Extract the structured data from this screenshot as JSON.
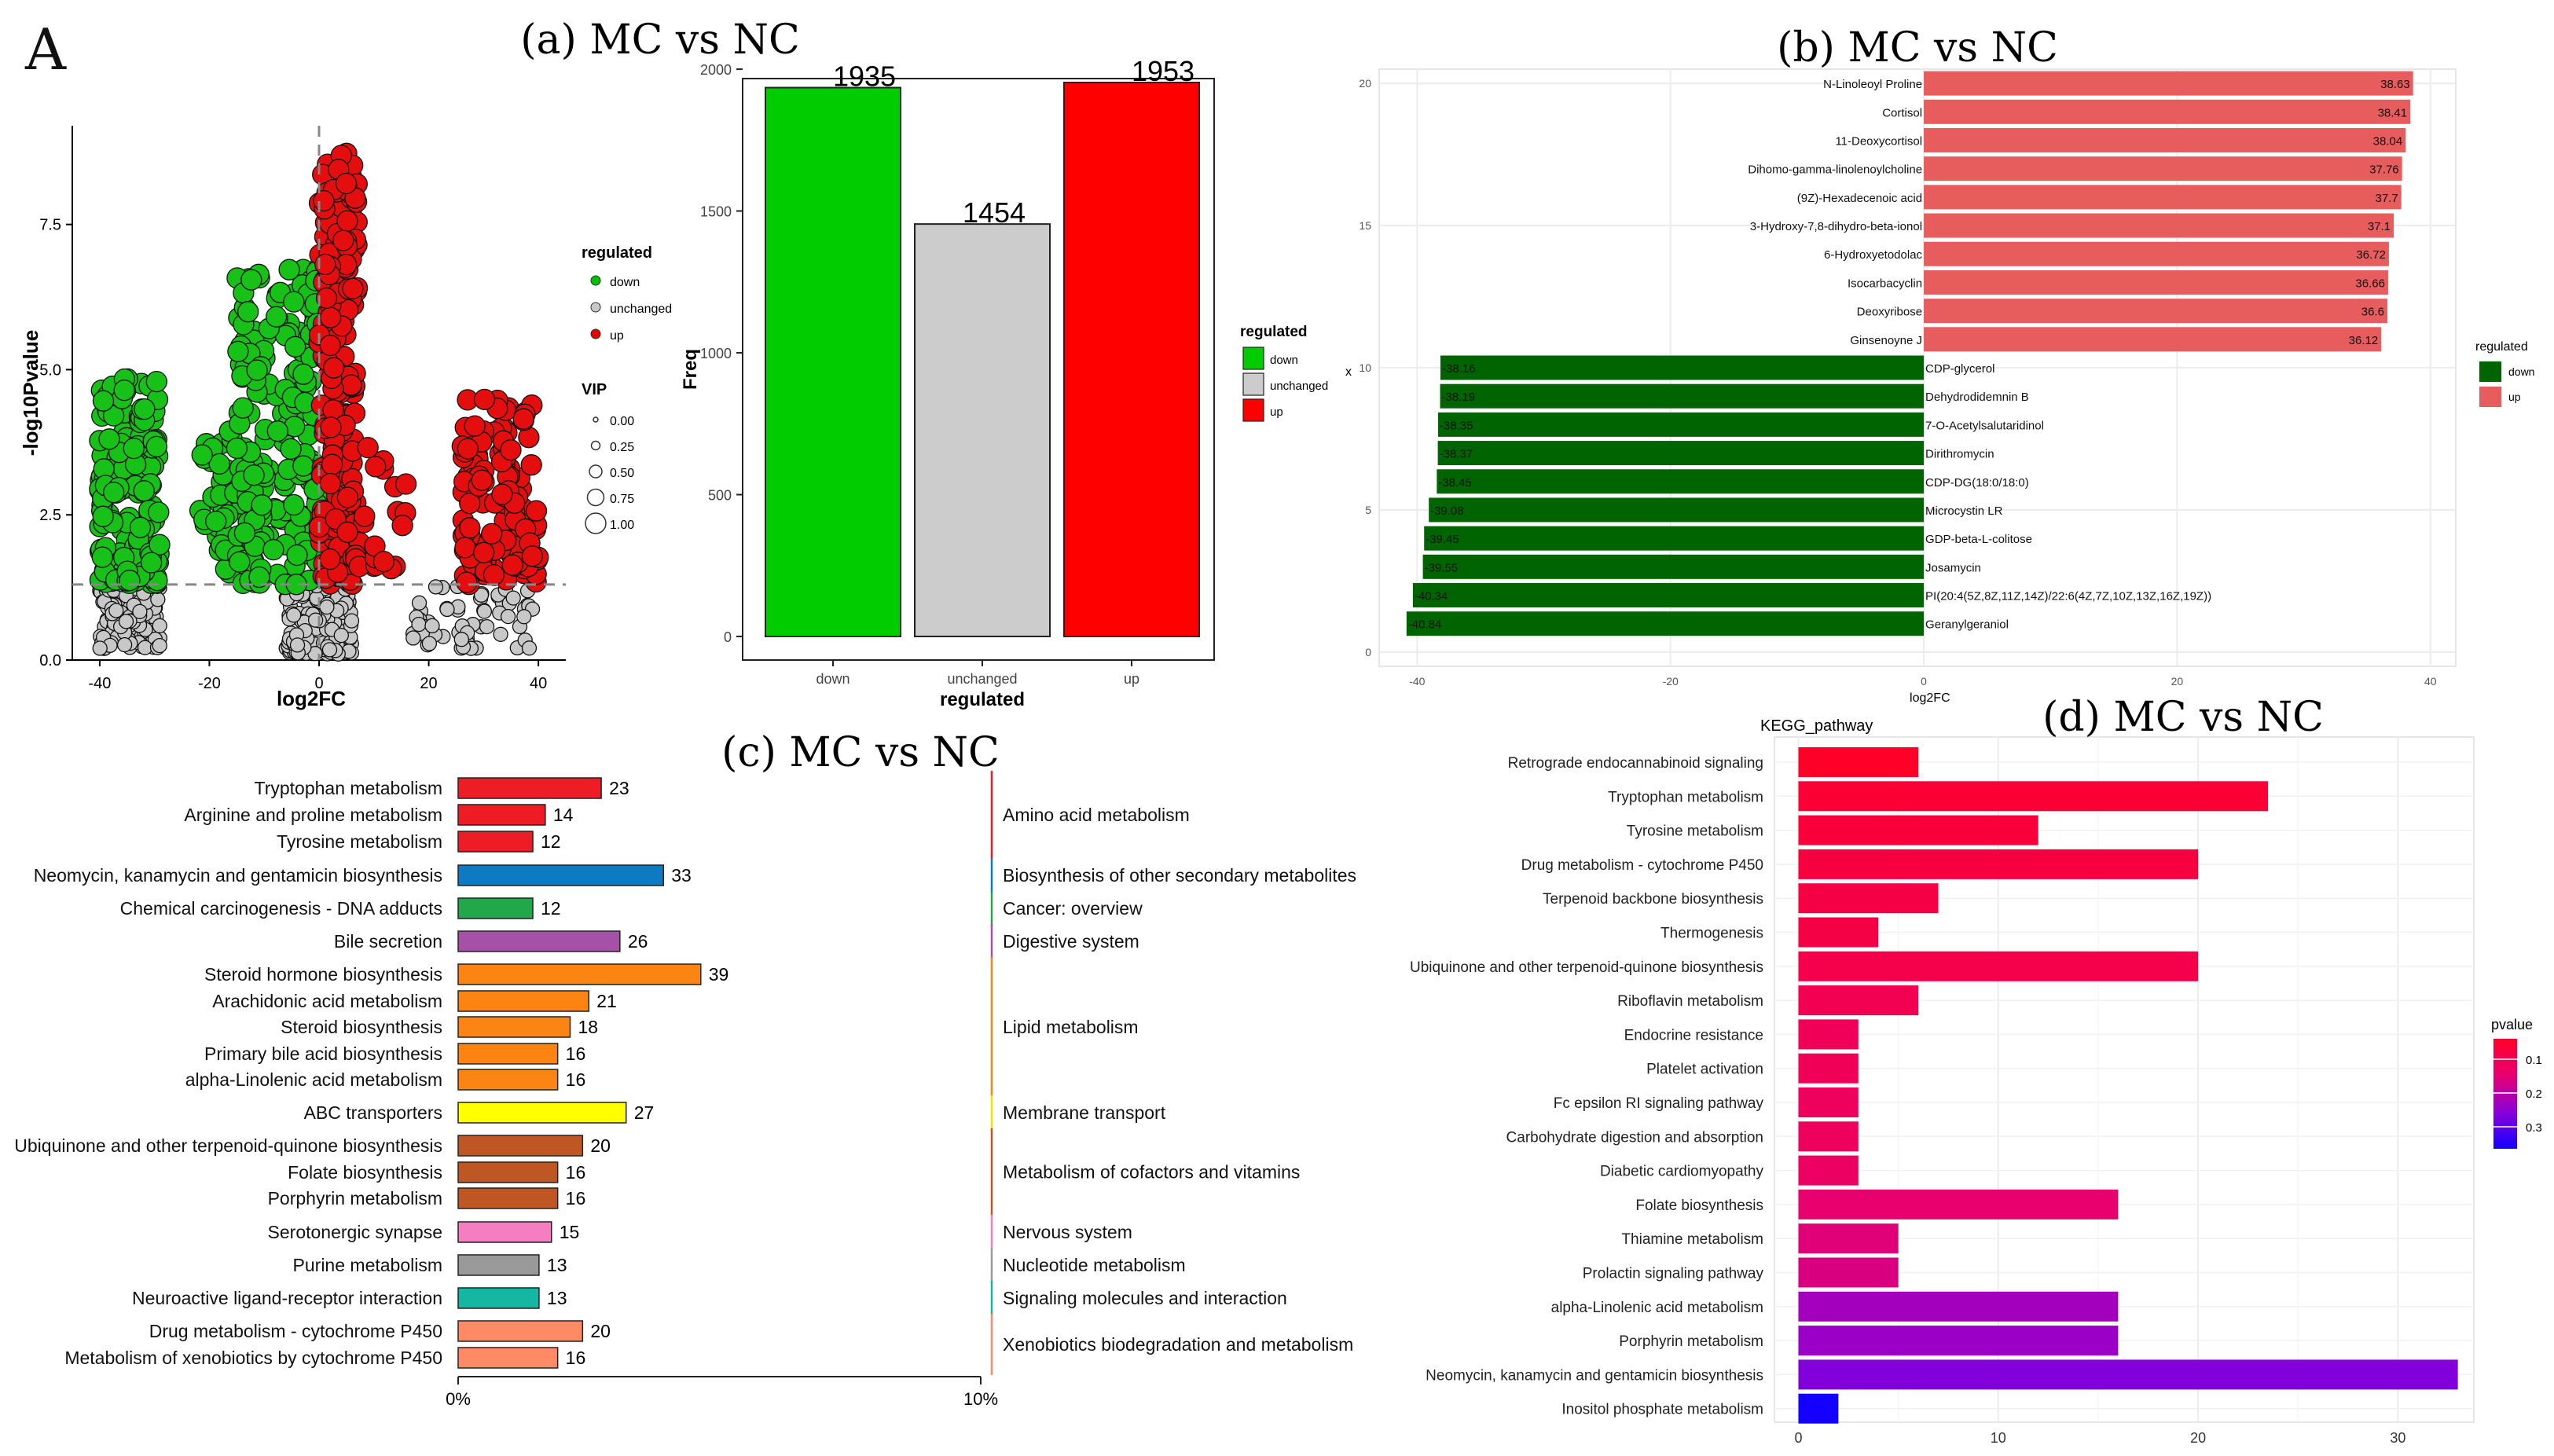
{
  "figure_label": "A",
  "chart_data": [
    {
      "id": "volcano",
      "type": "scatter",
      "title": "",
      "xlabel": "log2FC",
      "ylabel": "-log10Pvalue",
      "xlim": [
        -45,
        45
      ],
      "ylim": [
        0,
        9.2
      ],
      "xticks": [
        "-40",
        "-20",
        "0",
        "20",
        "40"
      ],
      "yticks": [
        "0.0",
        "2.5",
        "5.0",
        "7.5"
      ],
      "threshold_y": 1.3,
      "legend": {
        "title": "regulated",
        "items": [
          {
            "label": "down",
            "color": "#00c000"
          },
          {
            "label": "unchanged",
            "color": "#c8c8c8"
          },
          {
            "label": "up",
            "color": "#e60000"
          }
        ],
        "size_title": "VIP",
        "size_items": [
          "0.00",
          "0.25",
          "0.50",
          "0.75",
          "1.00"
        ]
      },
      "colors": {
        "down": "#17c117",
        "unchanged": "#c8c8c8",
        "up": "#e50e0e"
      }
    },
    {
      "id": "a",
      "type": "bar",
      "title": "(a) MC vs NC",
      "xlabel": "regulated",
      "ylabel": "Freq",
      "categories": [
        "down",
        "unchanged",
        "up"
      ],
      "values": [
        1935,
        1454,
        1953
      ],
      "value_labels": [
        "1935",
        "1454",
        "1953"
      ],
      "colors": [
        "#00cc00",
        "#cccccc",
        "#ff0000"
      ],
      "ylim": [
        0,
        2050
      ],
      "yticks": [
        "0",
        "500",
        "1000",
        "1500",
        "2000"
      ],
      "legend": {
        "title": "regulated",
        "items": [
          "down",
          "unchanged",
          "up"
        ]
      }
    },
    {
      "id": "b",
      "type": "bar",
      "orientation": "horizontal",
      "title": "(b) MC vs NC",
      "xlabel": "log2FC",
      "ylabel": "x",
      "xlim": [
        -43,
        42
      ],
      "xticks": [
        "-40",
        "-20",
        "0",
        "20",
        "40"
      ],
      "yticks": [
        "0",
        "5",
        "10",
        "15",
        "20"
      ],
      "legend": {
        "title": "regulated",
        "items": [
          {
            "label": "down",
            "color": "#006400"
          },
          {
            "label": "up",
            "color": "#e75d5d"
          }
        ]
      },
      "up": [
        {
          "name": "N-Linoleoyl Proline",
          "value": 38.63,
          "label": "38.63"
        },
        {
          "name": "Cortisol",
          "value": 38.41,
          "label": "38.41"
        },
        {
          "name": "11-Deoxycortisol",
          "value": 38.04,
          "label": "38.04"
        },
        {
          "name": "Dihomo-gamma-linolenoylcholine",
          "value": 37.76,
          "label": "37.76"
        },
        {
          "name": "(9Z)-Hexadecenoic acid",
          "value": 37.7,
          "label": "37.7"
        },
        {
          "name": "3-Hydroxy-7,8-dihydro-beta-ionol",
          "value": 37.1,
          "label": "37.1"
        },
        {
          "name": "6-Hydroxyetodolac",
          "value": 36.72,
          "label": "36.72"
        },
        {
          "name": "Isocarbacyclin",
          "value": 36.66,
          "label": "36.66"
        },
        {
          "name": "Deoxyribose",
          "value": 36.6,
          "label": "36.6"
        },
        {
          "name": "Ginsenoyne J",
          "value": 36.12,
          "label": "36.12"
        }
      ],
      "down": [
        {
          "name": "CDP-glycerol",
          "value": -38.16,
          "label": "-38.16"
        },
        {
          "name": "Dehydrodidemnin B",
          "value": -38.19,
          "label": "-38.19"
        },
        {
          "name": "7-O-Acetylsalutaridinol",
          "value": -38.35,
          "label": "-38.35"
        },
        {
          "name": "Dirithromycin",
          "value": -38.37,
          "label": "-38.37"
        },
        {
          "name": "CDP-DG(18:0/18:0)",
          "value": -38.45,
          "label": "-38.45"
        },
        {
          "name": "Microcystin LR",
          "value": -39.08,
          "label": "-39.08"
        },
        {
          "name": "GDP-beta-L-colitose",
          "value": -39.45,
          "label": "-39.45"
        },
        {
          "name": "Josamycin",
          "value": -39.55,
          "label": "-39.55"
        },
        {
          "name": "PI(20:4(5Z,8Z,11Z,14Z)/22:6(4Z,7Z,10Z,13Z,16Z,19Z))",
          "value": -40.34,
          "label": "-40.34"
        },
        {
          "name": "Geranylgeraniol",
          "value": -40.84,
          "label": "-40.84"
        }
      ]
    },
    {
      "id": "c",
      "type": "bar",
      "orientation": "horizontal",
      "title": "(c) MC vs NC",
      "xticks": [
        "0%",
        "10%"
      ],
      "xlim": [
        0,
        84
      ],
      "rows": [
        {
          "name": "Tryptophan metabolism",
          "value": 23,
          "label": "23",
          "color": "#ee1c24"
        },
        {
          "name": "Arginine and proline metabolism",
          "value": 14,
          "label": "14",
          "color": "#ee1c24"
        },
        {
          "name": "Tyrosine metabolism",
          "value": 12,
          "label": "12",
          "color": "#ee1c24"
        },
        {
          "name": "Neomycin, kanamycin and gentamicin biosynthesis",
          "value": 33,
          "label": "33",
          "color": "#0e7ac2"
        },
        {
          "name": "Chemical carcinogenesis - DNA adducts",
          "value": 12,
          "label": "12",
          "color": "#22a84a"
        },
        {
          "name": "Bile secretion",
          "value": 26,
          "label": "26",
          "color": "#a651a8"
        },
        {
          "name": "Steroid hormone biosynthesis",
          "value": 39,
          "label": "39",
          "color": "#fb8412"
        },
        {
          "name": "Arachidonic acid metabolism",
          "value": 21,
          "label": "21",
          "color": "#fb8412"
        },
        {
          "name": "Steroid biosynthesis",
          "value": 18,
          "label": "18",
          "color": "#fb8412"
        },
        {
          "name": "Primary bile acid biosynthesis",
          "value": 16,
          "label": "16",
          "color": "#fb8412"
        },
        {
          "name": "alpha-Linolenic acid metabolism",
          "value": 16,
          "label": "16",
          "color": "#fb8412"
        },
        {
          "name": "ABC transporters",
          "value": 27,
          "label": "27",
          "color": "#ffff00"
        },
        {
          "name": "Ubiquinone and other terpenoid-quinone biosynthesis",
          "value": 20,
          "label": "20",
          "color": "#bf5725"
        },
        {
          "name": "Folate biosynthesis",
          "value": 16,
          "label": "16",
          "color": "#bf5725"
        },
        {
          "name": "Porphyrin metabolism",
          "value": 16,
          "label": "16",
          "color": "#bf5725"
        },
        {
          "name": "Serotonergic synapse",
          "value": 15,
          "label": "15",
          "color": "#f57ec0"
        },
        {
          "name": "Purine metabolism",
          "value": 13,
          "label": "13",
          "color": "#999999"
        },
        {
          "name": "Neuroactive ligand-receptor interaction",
          "value": 13,
          "label": "13",
          "color": "#14b7a1"
        },
        {
          "name": "Drug metabolism - cytochrome P450",
          "value": 20,
          "label": "20",
          "color": "#ff8a65"
        },
        {
          "name": "Metabolism of xenobiotics by cytochrome P450",
          "value": 16,
          "label": "16",
          "color": "#ff8a65"
        }
      ],
      "groups": [
        {
          "label": "Amino acid metabolism",
          "first": 0,
          "last": 2,
          "color": "#ee1c24"
        },
        {
          "label": "Biosynthesis of other secondary metabolites",
          "first": 3,
          "last": 3,
          "color": "#0e7ac2"
        },
        {
          "label": "Cancer: overview",
          "first": 4,
          "last": 4,
          "color": "#22a84a"
        },
        {
          "label": "Digestive system",
          "first": 5,
          "last": 5,
          "color": "#a651a8"
        },
        {
          "label": "Lipid metabolism",
          "first": 6,
          "last": 10,
          "color": "#fb8412"
        },
        {
          "label": "Membrane transport",
          "first": 11,
          "last": 11,
          "color": "#e6e600"
        },
        {
          "label": "Metabolism of cofactors and vitamins",
          "first": 12,
          "last": 14,
          "color": "#bf5725"
        },
        {
          "label": "Nervous system",
          "first": 15,
          "last": 15,
          "color": "#f57ec0"
        },
        {
          "label": "Nucleotide metabolism",
          "first": 16,
          "last": 16,
          "color": "#999999"
        },
        {
          "label": "Signaling molecules and interaction",
          "first": 17,
          "last": 17,
          "color": "#14b7a1"
        },
        {
          "label": "Xenobiotics biodegradation and metabolism",
          "first": 18,
          "last": 19,
          "color": "#ff8a65"
        }
      ]
    },
    {
      "id": "d",
      "type": "bar",
      "orientation": "horizontal",
      "title": "(d) MC vs NC",
      "ylabel": "KEGG_pathway",
      "xlim": [
        -1.2,
        33.8
      ],
      "xticks": [
        "0",
        "10",
        "20",
        "30"
      ],
      "legend": {
        "title": "pvalue",
        "ticks": [
          "0.1",
          "0.2",
          "0.3"
        ]
      },
      "rows": [
        {
          "name": "Retrograde endocannabinoid signaling",
          "value": 6,
          "pvalue": 0.01
        },
        {
          "name": "Tryptophan metabolism",
          "value": 23.5,
          "pvalue": 0.03
        },
        {
          "name": "Tyrosine metabolism",
          "value": 12,
          "pvalue": 0.04
        },
        {
          "name": "Drug metabolism - cytochrome P450",
          "value": 20,
          "pvalue": 0.05
        },
        {
          "name": "Terpenoid backbone biosynthesis",
          "value": 7,
          "pvalue": 0.06
        },
        {
          "name": "Thermogenesis",
          "value": 4,
          "pvalue": 0.06
        },
        {
          "name": "Ubiquinone and other terpenoid-quinone biosynthesis",
          "value": 20,
          "pvalue": 0.07
        },
        {
          "name": "Riboflavin metabolism",
          "value": 6,
          "pvalue": 0.08
        },
        {
          "name": "Endocrine resistance",
          "value": 3,
          "pvalue": 0.09
        },
        {
          "name": "Platelet activation",
          "value": 3,
          "pvalue": 0.09
        },
        {
          "name": "Fc epsilon RI signaling pathway",
          "value": 3,
          "pvalue": 0.1
        },
        {
          "name": "Carbohydrate digestion and absorption",
          "value": 3,
          "pvalue": 0.1
        },
        {
          "name": "Diabetic cardiomyopathy",
          "value": 3,
          "pvalue": 0.11
        },
        {
          "name": "Folate biosynthesis",
          "value": 16,
          "pvalue": 0.13
        },
        {
          "name": "Thiamine metabolism",
          "value": 5,
          "pvalue": 0.14
        },
        {
          "name": "Prolactin signaling pathway",
          "value": 5,
          "pvalue": 0.15
        },
        {
          "name": "alpha-Linolenic acid metabolism",
          "value": 16,
          "pvalue": 0.22
        },
        {
          "name": "Porphyrin metabolism",
          "value": 16,
          "pvalue": 0.23
        },
        {
          "name": "Neomycin, kanamycin and gentamicin biosynthesis",
          "value": 33,
          "pvalue": 0.26
        },
        {
          "name": "Inositol phosphate metabolism",
          "value": 2,
          "pvalue": 0.37
        }
      ]
    }
  ]
}
